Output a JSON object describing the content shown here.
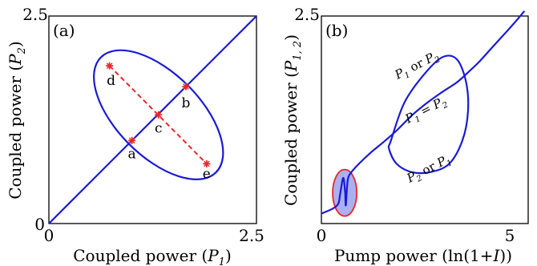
{
  "colors": {
    "curve": "#1a1ad6",
    "marker": "#e8282a",
    "fill": "#aab0f0",
    "frame": "#000000"
  },
  "chart_data": [
    {
      "type": "scatter",
      "panel_label": "(a)",
      "xlabel_prefix": "Coupled power (",
      "xlabel_var": "P",
      "xlabel_sub": "1",
      "xlabel_suffix": ")",
      "ylabel_prefix": "Coupled power (",
      "ylabel_var": "P",
      "ylabel_sub": "2",
      "ylabel_suffix": ")",
      "xlim": [
        0,
        2.5
      ],
      "ylim": [
        0,
        2.5
      ],
      "x_ticks": [
        "0",
        "2.5"
      ],
      "y_ticks": [
        "0",
        "2.5"
      ],
      "diagonal": {
        "x": [
          0,
          2.5
        ],
        "y": [
          0,
          2.5
        ]
      },
      "ellipse": {
        "center": [
          1.32,
          1.31
        ],
        "semi_major": 0.98,
        "semi_minor": 0.5,
        "angle_deg": -45
      },
      "dashed_segment": {
        "from": "d",
        "to": "e"
      },
      "points": [
        {
          "label": "a",
          "x": 1.0,
          "y": 1.0
        },
        {
          "label": "b",
          "x": 1.65,
          "y": 1.65
        },
        {
          "label": "c",
          "x": 1.32,
          "y": 1.31
        },
        {
          "label": "d",
          "x": 0.73,
          "y": 1.9
        },
        {
          "label": "e",
          "x": 1.9,
          "y": 0.72
        }
      ]
    },
    {
      "type": "line",
      "panel_label": "(b)",
      "xlabel_prefix": "Pump power (ln(1+",
      "xlabel_var": "I",
      "xlabel_suffix": "))",
      "ylabel_prefix": "Coupled power (",
      "ylabel_var": "P",
      "ylabel_sub": "1, 2",
      "ylabel_suffix": ")",
      "xlim": [
        0,
        5.5
      ],
      "ylim": [
        0,
        2.5
      ],
      "x_ticks": [
        "0",
        "5"
      ],
      "y_ticks": [
        "0",
        "2.5"
      ],
      "series": [
        {
          "x": [
            0,
            0.3,
            0.45,
            0.5,
            0.58,
            0.63,
            0.65,
            0.7,
            0.8,
            1.0,
            1.3,
            1.7,
            2.0,
            2.4,
            2.8,
            3.2,
            3.6,
            3.9,
            4.2,
            4.5,
            4.8,
            5.1,
            5.4
          ],
          "y": [
            0.12,
            0.18,
            0.24,
            0.36,
            0.55,
            0.38,
            0.22,
            0.52,
            0.62,
            0.72,
            0.85,
            1.0,
            1.12,
            1.3,
            1.45,
            1.58,
            1.7,
            1.82,
            1.95,
            2.1,
            2.25,
            2.4,
            2.56
          ]
        }
      ],
      "closed_curve": {
        "x": [
          1.85,
          2.2,
          2.7,
          3.2,
          3.6,
          3.85,
          3.9,
          3.75,
          3.4,
          2.9,
          2.4,
          2.0,
          1.8
        ],
        "y": [
          1.0,
          1.45,
          1.78,
          2.0,
          1.98,
          1.7,
          1.35,
          1.0,
          0.72,
          0.62,
          0.62,
          0.72,
          0.9
        ]
      },
      "shaded_ellipse": {
        "center": [
          0.62,
          0.37
        ],
        "semi_x": 0.32,
        "semi_y": 0.28
      },
      "labels": [
        {
          "id": "upper",
          "text_a": "P",
          "sub_a": "1",
          "mid": " or ",
          "text_b": "P",
          "sub_b": "2"
        },
        {
          "id": "middle",
          "text_a": "P",
          "sub_a": "1",
          "mid": " = ",
          "text_b": "P",
          "sub_b": "2"
        },
        {
          "id": "lower",
          "text_a": "P",
          "sub_a": "2",
          "mid": " or ",
          "text_b": "P",
          "sub_b": "1"
        }
      ]
    }
  ]
}
